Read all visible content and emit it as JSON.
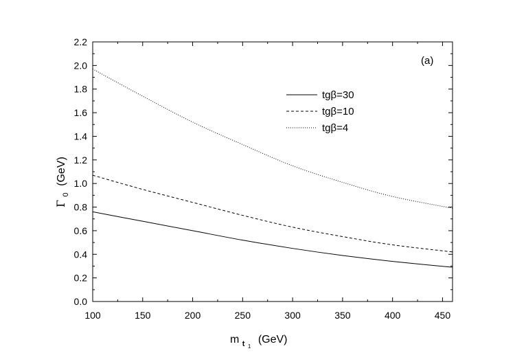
{
  "chart_data": {
    "type": "line",
    "panel_label": "(a)",
    "xlabel": {
      "main": "m",
      "sub": "t",
      "subsub": "1",
      "unit": "(GeV)"
    },
    "ylabel": {
      "main": "Γ",
      "sub": "0",
      "unit": "(GeV)"
    },
    "xlim": [
      100,
      460
    ],
    "ylim": [
      0.0,
      2.2
    ],
    "xticks": [
      "100",
      "150",
      "200",
      "250",
      "300",
      "350",
      "400",
      "450"
    ],
    "yticks": [
      "0.0",
      "0.2",
      "0.4",
      "0.6",
      "0.8",
      "1.0",
      "1.2",
      "1.4",
      "1.6",
      "1.8",
      "2.0",
      "2.2"
    ],
    "legend_position": "upper-right",
    "series": [
      {
        "name": "tgβ=30",
        "style": "solid",
        "x": [
          100,
          150,
          200,
          250,
          300,
          350,
          400,
          460
        ],
        "y": [
          0.76,
          0.68,
          0.6,
          0.52,
          0.45,
          0.39,
          0.34,
          0.29
        ]
      },
      {
        "name": "tgβ=10",
        "style": "dashed",
        "x": [
          100,
          150,
          200,
          250,
          300,
          350,
          400,
          460
        ],
        "y": [
          1.07,
          0.95,
          0.84,
          0.73,
          0.63,
          0.55,
          0.48,
          0.42
        ]
      },
      {
        "name": "tgβ=4",
        "style": "dotted",
        "x": [
          100,
          150,
          200,
          250,
          300,
          350,
          400,
          460
        ],
        "y": [
          1.97,
          1.74,
          1.52,
          1.33,
          1.15,
          1.01,
          0.89,
          0.79
        ]
      }
    ]
  }
}
